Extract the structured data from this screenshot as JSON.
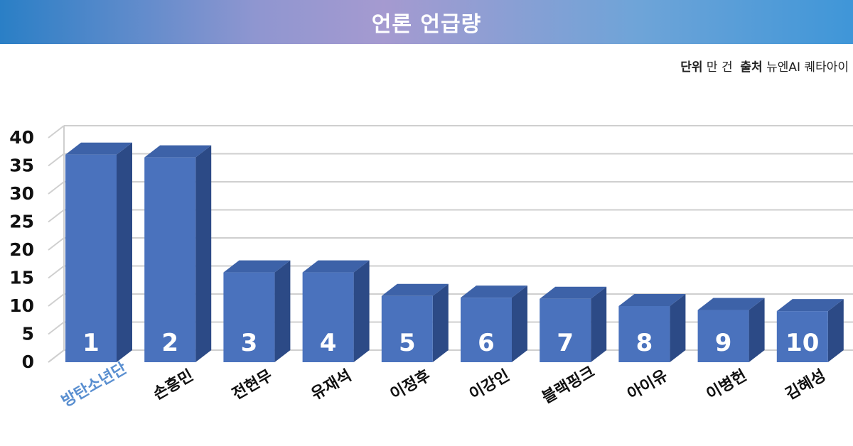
{
  "header": {
    "title": "언론 언급량"
  },
  "source": {
    "unit_label": "단위",
    "unit_value": "만 건",
    "source_label": "출처",
    "source_value": "뉴엔AI 퀘타아이"
  },
  "colors": {
    "bar_front": "#4a72bd",
    "bar_side": "#2c4a86",
    "bar_top": "#3d62a8",
    "highlight_label": "#5a8fd0",
    "grid": "#cfcfcf"
  },
  "chart_data": {
    "type": "bar",
    "title": "",
    "xlabel": "",
    "ylabel": "",
    "ylim": [
      0,
      40
    ],
    "yticks": [
      "0",
      "5",
      "10",
      "15",
      "20",
      "25",
      "30",
      "35",
      "40"
    ],
    "categories": [
      "방탄소년단",
      "손흥민",
      "전현무",
      "유재석",
      "이정후",
      "이강인",
      "블랙핑크",
      "아이유",
      "이병헌",
      "김혜성"
    ],
    "ranks": [
      "1",
      "2",
      "3",
      "4",
      "5",
      "6",
      "7",
      "8",
      "9",
      "10"
    ],
    "values": [
      37,
      36.5,
      16,
      16,
      11.8,
      11.5,
      11.3,
      10,
      9.3,
      9.1
    ],
    "grid": true,
    "highlight_index": 0
  }
}
